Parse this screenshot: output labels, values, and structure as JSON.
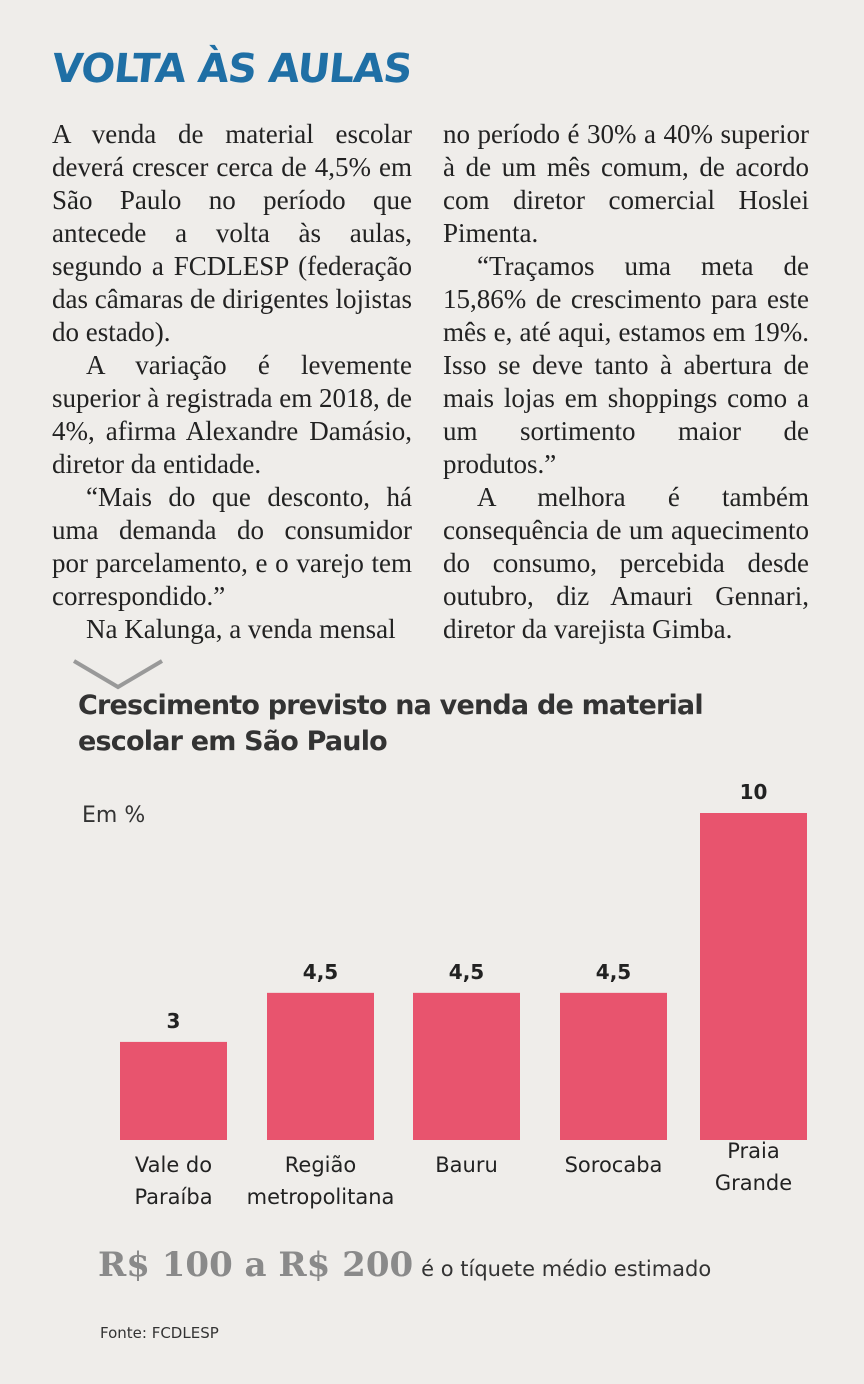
{
  "headline": "VOLTA ÀS AULAS",
  "column_left": [
    "A venda de material escolar deverá crescer cerca de 4,5% em São Paulo no período que antecede a volta às aulas, segundo a FCDLESP (federação das câmaras de dirigentes lojistas do estado).",
    "A variação é levemente superior à registrada em 2018, de 4%, afirma Alexandre Damásio, diretor da entidade.",
    "“Mais do que desconto, há uma demanda do consumidor por parcelamento, e o varejo tem correspondido.”",
    "Na Kalunga, a venda mensal"
  ],
  "column_right": [
    "no período é 30% a 40% superior à de um mês comum, de acordo com diretor comercial Hoslei Pimenta.",
    "“Traçamos uma meta de 15,86% de crescimento para este mês e, até aqui, estamos em 19%. Isso se deve tanto à abertura de mais lojas em shoppings como a um sortimento maior de produtos.”",
    "A melhora é também consequência de um aquecimento do consumo, percebida desde outubro, diz Amauri Gennari, diretor da varejista Gimba."
  ],
  "chart_data": {
    "type": "bar",
    "title": "Crescimento previsto na venda de material escolar em São Paulo",
    "unit_label": "Em %",
    "categories": [
      [
        "Vale do",
        "Paraíba"
      ],
      [
        "Região",
        "metropolitana"
      ],
      [
        "Bauru"
      ],
      [
        "Sorocaba"
      ],
      [
        "Praia",
        "Grande"
      ]
    ],
    "values": [
      3,
      4.5,
      4.5,
      4.5,
      10
    ],
    "value_labels": [
      "3",
      "4,5",
      "4,5",
      "4,5",
      "10"
    ],
    "ylim": [
      0,
      10
    ],
    "bar_color": "#e8546e",
    "grid": false,
    "legend": "none"
  },
  "ticket": {
    "big": "R$ 100 a R$ 200",
    "small": "é o tíquete médio estimado"
  },
  "source": "Fonte: FCDLESP"
}
